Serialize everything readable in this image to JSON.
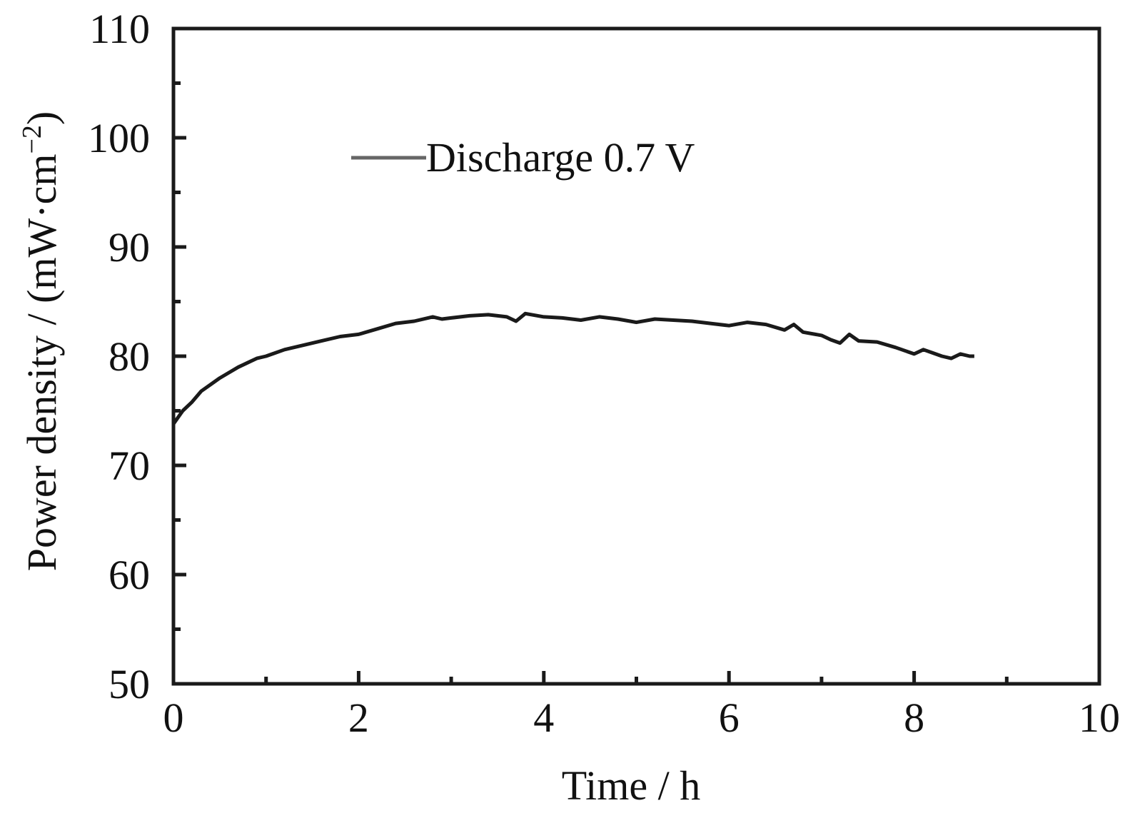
{
  "chart_data": {
    "type": "line",
    "title": "",
    "xlabel": "Time / h",
    "ylabel": "Power density / (mW·cm",
    "ylabel_sup": "−2",
    "ylabel_close": ")",
    "xlim": [
      0,
      10
    ],
    "ylim": [
      50,
      110
    ],
    "x_ticks": [
      0,
      2,
      4,
      6,
      8,
      10
    ],
    "x_tick_labels": [
      "0",
      "2",
      "4",
      "6",
      "8",
      "10"
    ],
    "x_minor_ticks": [
      1,
      3,
      5,
      7,
      9
    ],
    "y_ticks": [
      50,
      60,
      70,
      80,
      90,
      100,
      110
    ],
    "y_tick_labels": [
      "50",
      "60",
      "70",
      "80",
      "90",
      "100",
      "110"
    ],
    "y_minor_ticks": [
      55,
      65,
      75,
      85,
      95,
      105
    ],
    "grid": false,
    "legend": {
      "position": "top-left",
      "entries": [
        "Discharge 0.7 V"
      ]
    },
    "series": [
      {
        "name": "Discharge 0.7 V",
        "color": "#1a1a1a",
        "x": [
          0,
          0.1,
          0.2,
          0.3,
          0.4,
          0.5,
          0.6,
          0.7,
          0.8,
          0.9,
          1.0,
          1.2,
          1.4,
          1.6,
          1.8,
          2.0,
          2.2,
          2.4,
          2.6,
          2.8,
          2.9,
          3.0,
          3.2,
          3.4,
          3.6,
          3.7,
          3.8,
          4.0,
          4.2,
          4.4,
          4.6,
          4.8,
          5.0,
          5.2,
          5.4,
          5.6,
          5.8,
          6.0,
          6.2,
          6.4,
          6.6,
          6.7,
          6.8,
          7.0,
          7.1,
          7.2,
          7.3,
          7.4,
          7.6,
          7.8,
          8.0,
          8.1,
          8.2,
          8.3,
          8.4,
          8.5,
          8.6,
          8.65
        ],
        "y": [
          73.8,
          75.0,
          75.8,
          76.8,
          77.4,
          78.0,
          78.5,
          79.0,
          79.4,
          79.8,
          80.0,
          80.6,
          81.0,
          81.4,
          81.8,
          82.0,
          82.5,
          83.0,
          83.2,
          83.6,
          83.4,
          83.5,
          83.7,
          83.8,
          83.6,
          83.2,
          83.9,
          83.6,
          83.5,
          83.3,
          83.6,
          83.4,
          83.1,
          83.4,
          83.3,
          83.2,
          83.0,
          82.8,
          83.1,
          82.9,
          82.4,
          82.9,
          82.2,
          81.9,
          81.5,
          81.2,
          82.0,
          81.4,
          81.3,
          80.8,
          80.2,
          80.6,
          80.3,
          80.0,
          79.8,
          80.2,
          80.0,
          80.0
        ]
      }
    ]
  }
}
